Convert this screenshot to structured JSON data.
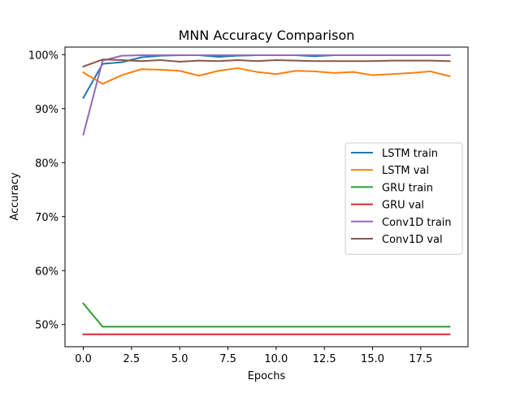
{
  "chart_data": {
    "type": "line",
    "title": "MNN Accuracy Comparison",
    "xlabel": "Epochs",
    "ylabel": "Accuracy",
    "xlim": [
      -0.95,
      19.95
    ],
    "ylim": [
      45.9,
      101.4
    ],
    "x_ticks": [
      0.0,
      2.5,
      5.0,
      7.5,
      10.0,
      12.5,
      15.0,
      17.5
    ],
    "x_tick_labels": [
      "0.0",
      "2.5",
      "5.0",
      "7.5",
      "10.0",
      "12.5",
      "15.0",
      "17.5"
    ],
    "y_ticks": [
      50,
      60,
      70,
      80,
      90,
      100
    ],
    "y_tick_labels": [
      "50%",
      "60%",
      "70%",
      "80%",
      "90%",
      "100%"
    ],
    "legend_position": "center-right",
    "grid": false,
    "x": [
      0,
      1,
      2,
      3,
      4,
      5,
      6,
      7,
      8,
      9,
      10,
      11,
      12,
      13,
      14,
      15,
      16,
      17,
      18,
      19
    ],
    "series": [
      {
        "name": "LSTM train",
        "color": "#1f77b4",
        "values": [
          92.0,
          98.3,
          98.6,
          99.5,
          99.8,
          99.9,
          99.9,
          99.6,
          99.8,
          99.9,
          99.9,
          99.9,
          99.7,
          99.9,
          99.9,
          99.9,
          99.9,
          99.9,
          99.9,
          99.9
        ]
      },
      {
        "name": "LSTM val",
        "color": "#ff7f0e",
        "values": [
          96.7,
          94.6,
          96.2,
          97.3,
          97.2,
          97.0,
          96.1,
          97.0,
          97.5,
          96.8,
          96.4,
          97.0,
          96.9,
          96.6,
          96.8,
          96.2,
          96.4,
          96.6,
          96.9,
          96.0
        ]
      },
      {
        "name": "GRU train",
        "color": "#2ca02c",
        "values": [
          53.9,
          49.6,
          49.6,
          49.6,
          49.6,
          49.6,
          49.6,
          49.6,
          49.6,
          49.6,
          49.6,
          49.6,
          49.6,
          49.6,
          49.6,
          49.6,
          49.6,
          49.6,
          49.6,
          49.6
        ]
      },
      {
        "name": "GRU val",
        "color": "#d62728",
        "values": [
          48.2,
          48.2,
          48.2,
          48.2,
          48.2,
          48.2,
          48.2,
          48.2,
          48.2,
          48.2,
          48.2,
          48.2,
          48.2,
          48.2,
          48.2,
          48.2,
          48.2,
          48.2,
          48.2,
          48.2
        ]
      },
      {
        "name": "Conv1D train",
        "color": "#9467bd",
        "values": [
          85.2,
          98.9,
          99.8,
          99.9,
          99.9,
          99.9,
          99.9,
          99.9,
          99.9,
          99.9,
          99.9,
          99.9,
          99.9,
          99.9,
          99.9,
          99.9,
          99.9,
          99.9,
          99.9,
          99.9
        ]
      },
      {
        "name": "Conv1D val",
        "color": "#8c564b",
        "values": [
          97.8,
          99.1,
          99.0,
          98.8,
          99.0,
          98.7,
          98.9,
          98.8,
          99.0,
          98.8,
          99.0,
          98.9,
          98.8,
          98.8,
          98.8,
          98.8,
          98.9,
          98.9,
          98.9,
          98.8
        ]
      }
    ]
  }
}
